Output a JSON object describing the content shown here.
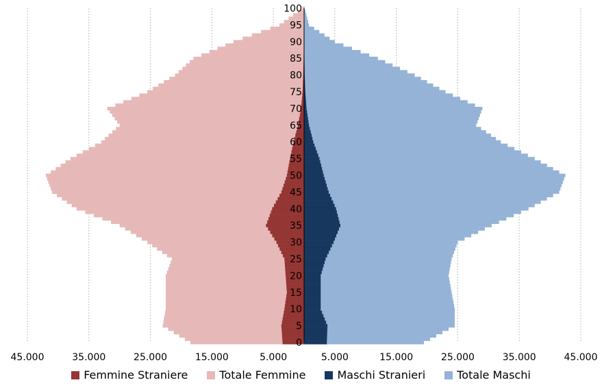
{
  "chart_data": {
    "type": "bar",
    "subtype": "population-pyramid",
    "orientation": "horizontal",
    "xlim": [
      -45000,
      45000
    ],
    "ylim": [
      0,
      100
    ],
    "x_tick_labels": [
      "45.000",
      "35.000",
      "25.000",
      "15.000",
      "5.000",
      "5.000",
      "15.000",
      "25.000",
      "35.000",
      "45.000"
    ],
    "y_tick_labels": [
      "0",
      "5",
      "10",
      "15",
      "20",
      "25",
      "30",
      "35",
      "40",
      "45",
      "50",
      "55",
      "60",
      "65",
      "70",
      "75",
      "80",
      "85",
      "90",
      "95",
      "100"
    ],
    "grid": "vertical dotted",
    "legend_position": "bottom",
    "colors": {
      "Femmine Straniere": "#943634",
      "Totale Femmine": "#e6b9b8",
      "Maschi Stranieri": "#17375e",
      "Totale Maschi": "#95b3d7"
    },
    "categories": [
      0,
      5,
      10,
      15,
      20,
      25,
      30,
      35,
      40,
      45,
      50,
      55,
      60,
      65,
      70,
      75,
      80,
      85,
      90,
      95,
      100
    ],
    "series": [
      {
        "name": "Totale Femmine",
        "side": "left",
        "values": [
          18500,
          23000,
          22500,
          22500,
          22500,
          21500,
          25500,
          30000,
          37000,
          41000,
          42000,
          38000,
          33000,
          30000,
          32000,
          25500,
          21000,
          18000,
          11500,
          4000,
          300
        ]
      },
      {
        "name": "Femmine Straniere",
        "side": "left",
        "values": [
          3500,
          3700,
          3200,
          2800,
          3000,
          3200,
          4500,
          6200,
          5200,
          3700,
          2800,
          2300,
          1700,
          1000,
          500,
          250,
          150,
          80,
          40,
          10,
          0
        ]
      },
      {
        "name": "Totale Maschi",
        "side": "right",
        "values": [
          19500,
          24500,
          24500,
          24000,
          23500,
          24000,
          25000,
          30500,
          36500,
          41500,
          42500,
          37500,
          32000,
          28000,
          29000,
          23000,
          18000,
          12000,
          5000,
          800,
          100
        ]
      },
      {
        "name": "Maschi Stranieri",
        "side": "right",
        "values": [
          3700,
          3800,
          2700,
          2700,
          2700,
          3500,
          4800,
          5900,
          5200,
          4000,
          3200,
          2500,
          1500,
          800,
          400,
          200,
          100,
          50,
          20,
          5,
          0
        ]
      }
    ]
  }
}
